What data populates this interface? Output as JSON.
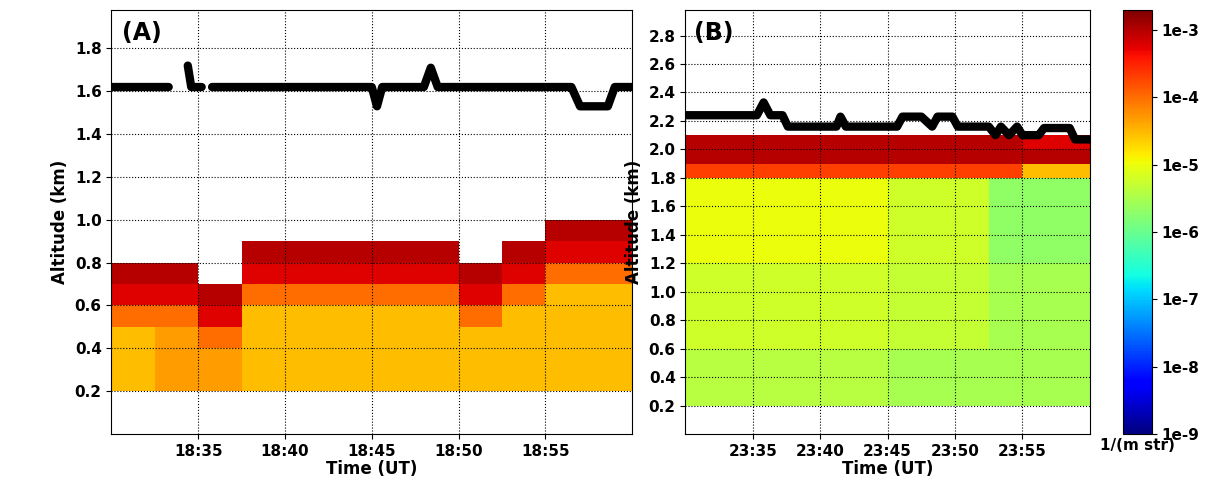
{
  "chart_data": [
    {
      "type": "heatmap",
      "annotation": "(A)",
      "x_label": "Time (UT)",
      "y_label": "Altitude (km)",
      "xlim": [
        1110,
        1140
      ],
      "xticks": [
        {
          "value": 1115,
          "label": "18:35"
        },
        {
          "value": 1120,
          "label": "18:40"
        },
        {
          "value": 1125,
          "label": "18:45"
        },
        {
          "value": 1130,
          "label": "18:50"
        },
        {
          "value": 1135,
          "label": "18:55"
        }
      ],
      "ylim": [
        0,
        1.98
      ],
      "yticks": [
        0.2,
        0.4,
        0.6,
        0.8,
        1.0,
        1.2,
        1.4,
        1.6,
        1.8
      ],
      "grid": true,
      "x_edges": [
        1110,
        1112.5,
        1115,
        1117.5,
        1120,
        1122.5,
        1125,
        1127.5,
        1130,
        1132.5,
        1135,
        1137.5,
        1140
      ],
      "y_edges": [
        0,
        0.1,
        0.2,
        0.3,
        0.4,
        0.5,
        0.6,
        0.7,
        0.8,
        0.9,
        1.0,
        1.1,
        1.2,
        1.3,
        1.4,
        1.5,
        1.6,
        1.7,
        1.8,
        1.9,
        2.0
      ],
      "cells": [
        [
          null,
          null,
          null,
          null,
          null,
          null,
          null,
          null,
          null,
          null,
          null,
          null
        ],
        [
          null,
          null,
          null,
          null,
          null,
          null,
          null,
          null,
          null,
          null,
          null,
          null
        ],
        [
          3e-05,
          5e-05,
          5e-05,
          3e-05,
          3e-05,
          3e-05,
          3e-05,
          3e-05,
          3e-05,
          3e-05,
          3e-05,
          3e-05
        ],
        [
          3e-05,
          5e-05,
          5e-05,
          3e-05,
          3e-05,
          3e-05,
          3e-05,
          3e-05,
          3e-05,
          3e-05,
          3e-05,
          3e-05
        ],
        [
          3e-05,
          5e-05,
          0.0001,
          3e-05,
          3e-05,
          3e-05,
          3e-05,
          3e-05,
          3e-05,
          3e-05,
          3e-05,
          3e-05
        ],
        [
          0.0001,
          0.0001,
          0.0006,
          3e-05,
          3e-05,
          3e-05,
          3e-05,
          3e-05,
          0.0001,
          3e-05,
          3e-05,
          3e-05
        ],
        [
          0.0006,
          0.0006,
          0.001,
          0.0001,
          0.0001,
          0.0001,
          0.0001,
          0.0001,
          0.0006,
          0.0001,
          3e-05,
          3e-05
        ],
        [
          0.001,
          0.001,
          null,
          0.0006,
          0.0006,
          0.0006,
          0.0006,
          0.0006,
          0.001,
          0.0006,
          0.0001,
          0.0001
        ],
        [
          null,
          null,
          null,
          0.001,
          0.001,
          0.001,
          0.001,
          0.001,
          null,
          0.001,
          0.0006,
          0.0006
        ],
        [
          null,
          null,
          null,
          null,
          null,
          null,
          null,
          null,
          null,
          null,
          0.001,
          0.001
        ],
        [
          null,
          null,
          null,
          null,
          null,
          null,
          null,
          null,
          null,
          null,
          null,
          null
        ],
        [
          null,
          null,
          null,
          null,
          null,
          null,
          null,
          null,
          null,
          null,
          null,
          null
        ],
        [
          null,
          null,
          null,
          null,
          null,
          null,
          null,
          null,
          null,
          null,
          null,
          null
        ],
        [
          null,
          null,
          null,
          null,
          null,
          null,
          null,
          null,
          null,
          null,
          null,
          null
        ],
        [
          null,
          null,
          null,
          null,
          null,
          null,
          null,
          null,
          null,
          null,
          null,
          null
        ],
        [
          null,
          null,
          null,
          null,
          null,
          null,
          null,
          null,
          null,
          null,
          null,
          null
        ],
        [
          null,
          null,
          null,
          null,
          null,
          null,
          null,
          null,
          null,
          null,
          null,
          null
        ],
        [
          null,
          null,
          null,
          null,
          null,
          null,
          null,
          null,
          null,
          null,
          null,
          null
        ],
        [
          null,
          null,
          null,
          null,
          null,
          null,
          null,
          null,
          null,
          null,
          null,
          null
        ],
        [
          null,
          null,
          null,
          null,
          null,
          null,
          null,
          null,
          null,
          null,
          null,
          null
        ]
      ],
      "series": [
        {
          "type": "line",
          "color": "#000000",
          "x": [
            1110,
            1113.3,
            1113.4,
            1114.4,
            1114.6,
            1115.2,
            1115.7,
            1115.8,
            1125,
            1125.3,
            1125.6,
            1128,
            1128.4,
            1128.8,
            1136.5,
            1137,
            1138.6,
            1139,
            1140
          ],
          "values": [
            1.62,
            1.62,
            null,
            1.72,
            1.62,
            1.62,
            null,
            1.62,
            1.62,
            1.53,
            1.62,
            1.62,
            1.71,
            1.62,
            1.62,
            1.53,
            1.53,
            1.62,
            1.62
          ]
        }
      ]
    },
    {
      "type": "heatmap",
      "annotation": "(B)",
      "x_label": "Time (UT)",
      "y_label": "Altitude (km)",
      "xlim": [
        1410,
        1440
      ],
      "xticks": [
        {
          "value": 1415,
          "label": "23:35"
        },
        {
          "value": 1420,
          "label": "23:40"
        },
        {
          "value": 1425,
          "label": "23:45"
        },
        {
          "value": 1430,
          "label": "23:50"
        },
        {
          "value": 1435,
          "label": "23:55"
        }
      ],
      "ylim": [
        0,
        2.98
      ],
      "yticks": [
        0.2,
        0.4,
        0.6,
        0.8,
        1.0,
        1.2,
        1.4,
        1.6,
        1.8,
        2.0,
        2.2,
        2.4,
        2.6,
        2.8
      ],
      "grid": true,
      "x_edges": [
        1410,
        1412.5,
        1415,
        1417.5,
        1420,
        1422.5,
        1425,
        1427.5,
        1430,
        1432.5,
        1435,
        1437.5,
        1440
      ],
      "y_edges": [
        0,
        0.1,
        0.2,
        0.3,
        0.4,
        0.5,
        0.6,
        0.7,
        0.8,
        0.9,
        1.0,
        1.1,
        1.2,
        1.3,
        1.4,
        1.5,
        1.6,
        1.7,
        1.8,
        1.9,
        2.0,
        2.1,
        2.2,
        2.3,
        2.4,
        2.5,
        2.6,
        2.7,
        2.8,
        2.9,
        3.0
      ],
      "cells": [
        [
          null,
          null,
          null,
          null,
          null,
          null,
          null,
          null,
          null,
          null,
          null,
          null
        ],
        [
          null,
          null,
          null,
          null,
          null,
          null,
          null,
          null,
          null,
          null,
          null,
          null
        ],
        [
          4e-06,
          4e-06,
          4e-06,
          4e-06,
          4e-06,
          4e-06,
          3e-06,
          3e-06,
          3e-06,
          3e-06,
          3e-06,
          3e-06
        ],
        [
          4e-06,
          4e-06,
          4e-06,
          4e-06,
          4e-06,
          4e-06,
          3e-06,
          3e-06,
          3e-06,
          3e-06,
          3e-06,
          3e-06
        ],
        [
          4e-06,
          4e-06,
          4e-06,
          4e-06,
          4e-06,
          4e-06,
          3e-06,
          3e-06,
          3e-06,
          3e-06,
          3e-06,
          3e-06
        ],
        [
          4e-06,
          4e-06,
          4e-06,
          4e-06,
          4e-06,
          4e-06,
          3e-06,
          3e-06,
          3e-06,
          3e-06,
          3e-06,
          3e-06
        ],
        [
          6e-06,
          6e-06,
          6e-06,
          6e-06,
          6e-06,
          6e-06,
          5e-06,
          5e-06,
          5e-06,
          3e-06,
          3e-06,
          3e-06
        ],
        [
          6e-06,
          6e-06,
          6e-06,
          6e-06,
          6e-06,
          6e-06,
          5e-06,
          5e-06,
          5e-06,
          3e-06,
          3e-06,
          3e-06
        ],
        [
          6e-06,
          6e-06,
          6e-06,
          6e-06,
          6e-06,
          6e-06,
          5e-06,
          5e-06,
          5e-06,
          3e-06,
          3e-06,
          3e-06
        ],
        [
          6e-06,
          6e-06,
          6e-06,
          6e-06,
          6e-06,
          6e-06,
          5e-06,
          5e-06,
          5e-06,
          3e-06,
          3e-06,
          3e-06
        ],
        [
          6e-06,
          6e-06,
          6e-06,
          6e-06,
          6e-06,
          6e-06,
          5e-06,
          5e-06,
          5e-06,
          3e-06,
          3e-06,
          3e-06
        ],
        [
          6e-06,
          6e-06,
          6e-06,
          6e-06,
          6e-06,
          6e-06,
          5e-06,
          5e-06,
          5e-06,
          3e-06,
          3e-06,
          3e-06
        ],
        [
          1e-05,
          1e-05,
          1e-05,
          1e-05,
          1e-05,
          1e-05,
          6e-06,
          6e-06,
          6e-06,
          2e-06,
          2e-06,
          2e-06
        ],
        [
          1e-05,
          1e-05,
          1e-05,
          1e-05,
          1e-05,
          1e-05,
          6e-06,
          6e-06,
          6e-06,
          2e-06,
          2e-06,
          2e-06
        ],
        [
          1e-05,
          1e-05,
          1e-05,
          1e-05,
          1e-05,
          1e-05,
          6e-06,
          6e-06,
          6e-06,
          2e-06,
          2e-06,
          2e-06
        ],
        [
          1e-05,
          1e-05,
          1e-05,
          1e-05,
          1e-05,
          1e-05,
          6e-06,
          6e-06,
          6e-06,
          2e-06,
          2e-06,
          2e-06
        ],
        [
          1e-05,
          1e-05,
          1e-05,
          1e-05,
          1e-05,
          1e-05,
          6e-06,
          6e-06,
          6e-06,
          2e-06,
          2e-06,
          2e-06
        ],
        [
          1e-05,
          1e-05,
          1e-05,
          1e-05,
          1e-05,
          1e-05,
          6e-06,
          6e-06,
          6e-06,
          2e-06,
          2e-06,
          2e-06
        ],
        [
          0.0002,
          0.0002,
          0.0002,
          0.0002,
          0.0002,
          0.0002,
          0.0002,
          0.0002,
          0.0002,
          0.0002,
          3e-05,
          3e-05
        ],
        [
          0.001,
          0.001,
          0.001,
          0.001,
          0.001,
          0.001,
          0.001,
          0.001,
          0.001,
          0.001,
          0.001,
          0.001
        ],
        [
          0.001,
          0.001,
          0.001,
          0.001,
          0.001,
          0.001,
          0.001,
          0.001,
          0.001,
          0.001,
          0.0006,
          0.0006
        ],
        [
          null,
          null,
          null,
          null,
          null,
          null,
          null,
          null,
          null,
          null,
          null,
          null
        ],
        [
          null,
          null,
          null,
          null,
          null,
          null,
          null,
          null,
          null,
          null,
          null,
          null
        ],
        [
          null,
          null,
          null,
          null,
          null,
          null,
          null,
          null,
          null,
          null,
          null,
          null
        ],
        [
          null,
          null,
          null,
          null,
          null,
          null,
          null,
          null,
          null,
          null,
          null,
          null
        ],
        [
          null,
          null,
          null,
          null,
          null,
          null,
          null,
          null,
          null,
          null,
          null,
          null
        ],
        [
          null,
          null,
          null,
          null,
          null,
          null,
          null,
          null,
          null,
          null,
          null,
          null
        ],
        [
          null,
          null,
          null,
          null,
          null,
          null,
          null,
          null,
          null,
          null,
          null,
          null
        ],
        [
          null,
          null,
          null,
          null,
          null,
          null,
          null,
          null,
          null,
          null,
          null,
          null
        ],
        [
          null,
          null,
          null,
          null,
          null,
          null,
          null,
          null,
          null,
          null,
          null,
          null
        ]
      ],
      "series": [
        {
          "type": "line",
          "color": "#000000",
          "x": [
            1410,
            1415.3,
            1415.8,
            1416.3,
            1417.2,
            1417.6,
            1421.2,
            1421.5,
            1421.9,
            1425.7,
            1426.1,
            1427.5,
            1428.3,
            1428.7,
            1429.8,
            1430.2,
            1430.6,
            1432.5,
            1433.0,
            1433.4,
            1434.0,
            1434.6,
            1435.0,
            1436.2,
            1436.6,
            1437.2,
            1438.5,
            1438.9,
            1440
          ],
          "values": [
            2.24,
            2.24,
            2.33,
            2.24,
            2.24,
            2.16,
            2.16,
            2.23,
            2.16,
            2.16,
            2.23,
            2.23,
            2.16,
            2.23,
            2.23,
            2.16,
            2.16,
            2.16,
            2.1,
            2.16,
            2.1,
            2.16,
            2.1,
            2.1,
            2.15,
            2.15,
            2.15,
            2.07,
            2.07
          ]
        }
      ]
    }
  ],
  "colorbar": {
    "range": [
      1e-09,
      0.002
    ],
    "ticks": [
      {
        "value": 0.001,
        "label": "1e-3"
      },
      {
        "value": 0.0001,
        "label": "1e-4"
      },
      {
        "value": 1e-05,
        "label": "1e-5"
      },
      {
        "value": 1e-06,
        "label": "1e-6"
      },
      {
        "value": 1e-07,
        "label": "1e-7"
      },
      {
        "value": 1e-08,
        "label": "1e-8"
      },
      {
        "value": 1e-09,
        "label": "1e-9"
      }
    ],
    "label": "1/(m str)"
  }
}
